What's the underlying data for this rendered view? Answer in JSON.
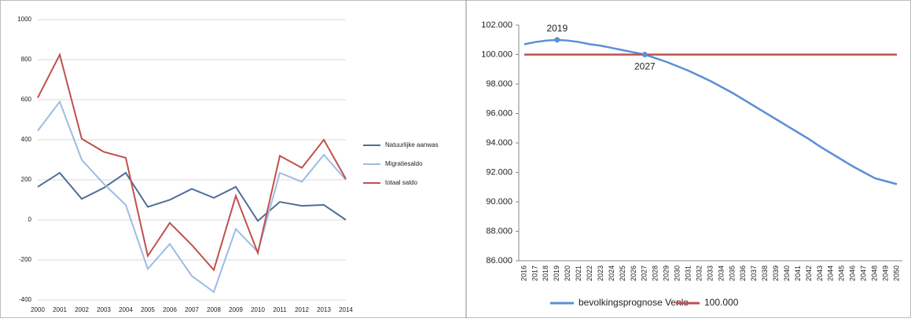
{
  "chart_data": [
    {
      "type": "line",
      "categories": [
        "2000",
        "2001",
        "2002",
        "2003",
        "2004",
        "2005",
        "2006",
        "2007",
        "2008",
        "2009",
        "2010",
        "2011",
        "2012",
        "2013",
        "2014"
      ],
      "series": [
        {
          "name": "Natuurlijke aanwas",
          "color": "#4f6d9a",
          "values": [
            165,
            235,
            105,
            160,
            235,
            65,
            100,
            155,
            110,
            165,
            -5,
            90,
            70,
            75,
            0
          ]
        },
        {
          "name": "Migratiesaldo",
          "color": "#9dbbe3",
          "values": [
            445,
            590,
            300,
            180,
            75,
            -245,
            -120,
            -280,
            -360,
            -45,
            -160,
            235,
            190,
            325,
            200
          ]
        },
        {
          "name": "totaal saldo",
          "color": "#c0504d",
          "values": [
            610,
            825,
            405,
            340,
            310,
            -180,
            -15,
            -125,
            -250,
            120,
            -165,
            320,
            260,
            400,
            205
          ]
        }
      ],
      "ylim": [
        -400,
        1000
      ],
      "yticks": [
        -400,
        -200,
        0,
        200,
        400,
        600,
        800,
        1000
      ],
      "grid": true,
      "legend": "right"
    },
    {
      "type": "line",
      "categories": [
        "2016",
        "2017",
        "2018",
        "2019",
        "2020",
        "2021",
        "2022",
        "2023",
        "2024",
        "2025",
        "2026",
        "2027",
        "2028",
        "2029",
        "2030",
        "2031",
        "2032",
        "2033",
        "2034",
        "2035",
        "2036",
        "2037",
        "2038",
        "2039",
        "2040",
        "2041",
        "2042",
        "2043",
        "2044",
        "2045",
        "2046",
        "2047",
        "2048",
        "2049",
        "2050"
      ],
      "series": [
        {
          "name": "bevolkingsprognose Venlo",
          "color": "#5b8fd6",
          "values": [
            100700,
            100850,
            100950,
            101000,
            100950,
            100850,
            100700,
            100600,
            100450,
            100300,
            100150,
            100000,
            99750,
            99500,
            99200,
            98900,
            98550,
            98200,
            97800,
            97400,
            96950,
            96500,
            96050,
            95600,
            95150,
            94700,
            94250,
            93750,
            93300,
            92850,
            92400,
            92000,
            91600,
            91400,
            91200
          ]
        },
        {
          "name": "100.000",
          "color": "#c0504d",
          "values": [
            100000,
            100000,
            100000,
            100000,
            100000,
            100000,
            100000,
            100000,
            100000,
            100000,
            100000,
            100000,
            100000,
            100000,
            100000,
            100000,
            100000,
            100000,
            100000,
            100000,
            100000,
            100000,
            100000,
            100000,
            100000,
            100000,
            100000,
            100000,
            100000,
            100000,
            100000,
            100000,
            100000,
            100000,
            100000
          ]
        }
      ],
      "ylim": [
        86000,
        102000
      ],
      "yticks": [
        {
          "value": 86000,
          "label": "86.000"
        },
        {
          "value": 88000,
          "label": "88.000"
        },
        {
          "value": 90000,
          "label": "90.000"
        },
        {
          "value": 92000,
          "label": "92.000"
        },
        {
          "value": 94000,
          "label": "94.000"
        },
        {
          "value": 96000,
          "label": "96.000"
        },
        {
          "value": 98000,
          "label": "98.000"
        },
        {
          "value": 100000,
          "label": "100.000"
        },
        {
          "value": 102000,
          "label": "102.000"
        }
      ],
      "grid": false,
      "legend": "bottom",
      "annotations": [
        {
          "text": "2019",
          "x": "2019"
        },
        {
          "text": "2027",
          "x": "2027"
        }
      ]
    }
  ]
}
